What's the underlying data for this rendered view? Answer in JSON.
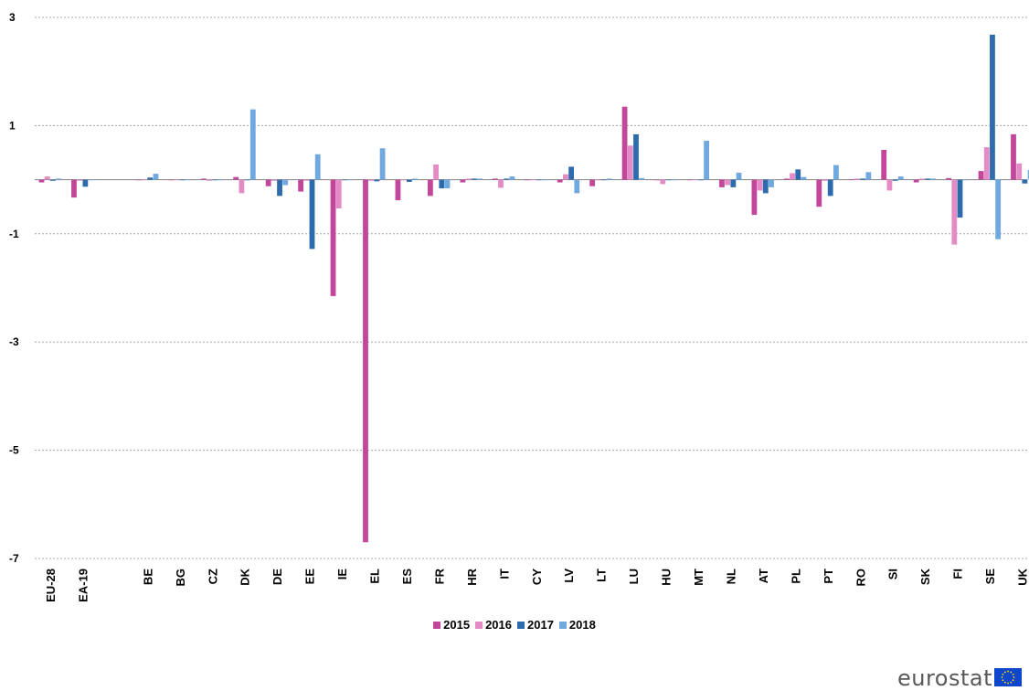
{
  "chart_data": {
    "type": "bar",
    "title": "",
    "xlabel": "",
    "ylabel": "",
    "ylim": [
      -7,
      3
    ],
    "yticks": [
      3,
      1,
      -1,
      -3,
      -5,
      -7
    ],
    "grid": true,
    "legend_position": "bottom",
    "categories": [
      "EU-28",
      "EA-19",
      "",
      "BE",
      "BG",
      "CZ",
      "DK",
      "DE",
      "EE",
      "IE",
      "EL",
      "ES",
      "FR",
      "HR",
      "IT",
      "CY",
      "LV",
      "LT",
      "LU",
      "HU",
      "MT",
      "NL",
      "AT",
      "PL",
      "PT",
      "RO",
      "SI",
      "SK",
      "FI",
      "SE",
      "UK"
    ],
    "series": [
      {
        "name": "2015",
        "color": "#c2479a",
        "values": [
          -0.05,
          -0.33,
          null,
          0.0,
          0.0,
          0.02,
          0.05,
          -0.12,
          -0.22,
          -2.15,
          -6.7,
          -0.38,
          -0.3,
          -0.05,
          0.02,
          0.0,
          -0.05,
          -0.12,
          1.35,
          0.0,
          0.0,
          -0.14,
          -0.65,
          0.02,
          -0.5,
          0.01,
          0.55,
          -0.05,
          0.03,
          0.16,
          0.84
        ]
      },
      {
        "name": "2016",
        "color": "#e48ac4",
        "values": [
          0.06,
          -0.02,
          null,
          0.0,
          0.0,
          -0.02,
          -0.25,
          -0.02,
          -0.02,
          -0.53,
          -0.02,
          0.0,
          0.28,
          0.02,
          -0.15,
          0.0,
          0.1,
          0.0,
          0.63,
          -0.08,
          0.0,
          -0.1,
          -0.2,
          0.12,
          -0.02,
          0.02,
          -0.2,
          0.02,
          -1.2,
          0.6,
          0.3
        ]
      },
      {
        "name": "2017",
        "color": "#2e6bad",
        "values": [
          -0.02,
          -0.13,
          null,
          0.04,
          0.0,
          0.0,
          0.0,
          -0.3,
          -1.28,
          0.0,
          -0.03,
          -0.04,
          -0.16,
          0.02,
          0.02,
          0.0,
          0.24,
          0.0,
          0.84,
          0.0,
          0.0,
          -0.14,
          -0.25,
          0.19,
          -0.3,
          0.02,
          -0.02,
          0.02,
          -0.7,
          2.68,
          -0.07
        ]
      },
      {
        "name": "2018",
        "color": "#70a8e0",
        "values": [
          0.02,
          0.0,
          null,
          0.11,
          0.0,
          0.0,
          1.3,
          -0.1,
          0.47,
          0.0,
          0.58,
          0.02,
          -0.16,
          0.02,
          0.06,
          0.0,
          -0.25,
          0.02,
          0.03,
          0.0,
          0.72,
          0.13,
          -0.14,
          0.05,
          0.27,
          0.14,
          0.06,
          0.02,
          0.0,
          -1.1,
          0.18
        ]
      }
    ]
  },
  "logo": {
    "text": "eurostat"
  }
}
